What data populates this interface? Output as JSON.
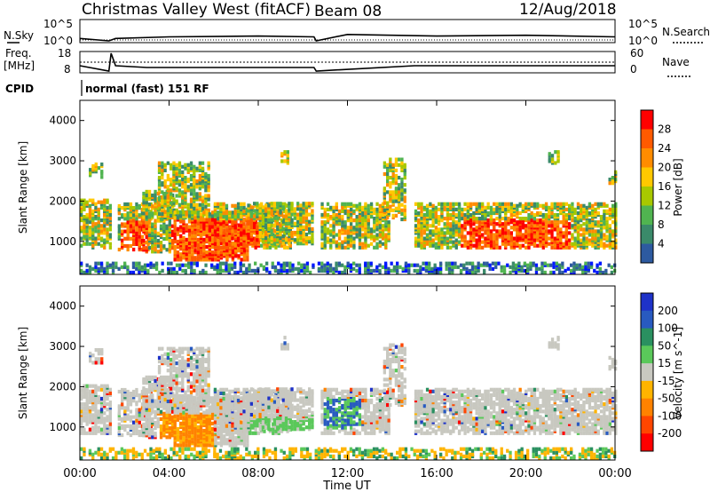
{
  "header": {
    "title": "Christmas Valley West (fitACF)",
    "beam": "Beam 08",
    "date": "12/Aug/2018"
  },
  "top_panels": {
    "nsky_label": "N.Sky",
    "nsky_ticks": [
      "10^5",
      "10^0"
    ],
    "nsearch_label": "N.Search",
    "freq_label_1": "Freq.",
    "freq_label_2": "[MHz]",
    "freq_ticks": [
      "18",
      "8"
    ],
    "nave_label": "Nave",
    "nave_ticks": [
      "60",
      "0"
    ],
    "cpid_label": "CPID",
    "cpid_value": "normal (fast) 151 RF"
  },
  "panels": {
    "power": {
      "ylabel": "Slant Range [km]",
      "colorbar_label": "Power [dB]",
      "colorbar_ticks": [
        "28",
        "24",
        "20",
        "16",
        "12",
        "8",
        "4"
      ],
      "colors": [
        "#ff0000",
        "#ff5a00",
        "#ff8c00",
        "#ffc800",
        "#a8c800",
        "#50b450",
        "#3a8a6a",
        "#2d5aa0",
        "#0018ff"
      ]
    },
    "velocity": {
      "ylabel": "Slant Range [km]",
      "colorbar_label": "Velocity [m s^-1]",
      "colorbar_ticks": [
        "200",
        "100",
        "50",
        "15",
        "-15",
        "-50",
        "-100",
        "-200"
      ],
      "colors": [
        "#1e32c8",
        "#285ac0",
        "#2a9060",
        "#5ac85a",
        "#c8c8c0",
        "#ffb400",
        "#ff8200",
        "#ff4600",
        "#ff0000"
      ]
    }
  },
  "xaxis": {
    "label": "Time UT",
    "ticks": [
      "00:00",
      "04:00",
      "08:00",
      "12:00",
      "16:00",
      "20:00",
      "00:00"
    ]
  },
  "chart_data": [
    {
      "type": "line",
      "name": "N.Sky / N.Search",
      "x": [
        0,
        1.3,
        1.6,
        4,
        8,
        10.5,
        10.6,
        12,
        16,
        20,
        24
      ],
      "y": [
        3,
        0,
        3,
        5,
        6,
        5,
        0,
        8,
        6,
        7,
        5
      ],
      "ylabels": [
        "10^0",
        "10^5"
      ]
    },
    {
      "type": "line",
      "name": "Freq. [MHz]",
      "x": [
        0,
        1.3,
        1.4,
        1.6,
        3,
        10.5,
        10.6,
        15,
        24
      ],
      "y": [
        11,
        8,
        18,
        11,
        10,
        10,
        8,
        11,
        11
      ],
      "ylim": [
        8,
        18
      ],
      "xlim_hours": [
        0,
        24
      ]
    },
    {
      "type": "heatmap",
      "name": "Power [dB]",
      "xlim_hours": [
        0,
        24
      ],
      "ylim": [
        180,
        4500
      ],
      "yticks": [
        1000,
        2000,
        3000,
        4000
      ],
      "colorbar": [
        4,
        8,
        12,
        16,
        20,
        24,
        28
      ]
    },
    {
      "type": "heatmap",
      "name": "Velocity [m s^-1]",
      "xlim_hours": [
        0,
        24
      ],
      "ylim": [
        180,
        4500
      ],
      "yticks": [
        1000,
        2000,
        3000,
        4000
      ],
      "colorbar": [
        -200,
        -100,
        -50,
        -15,
        15,
        50,
        100,
        200
      ]
    }
  ]
}
